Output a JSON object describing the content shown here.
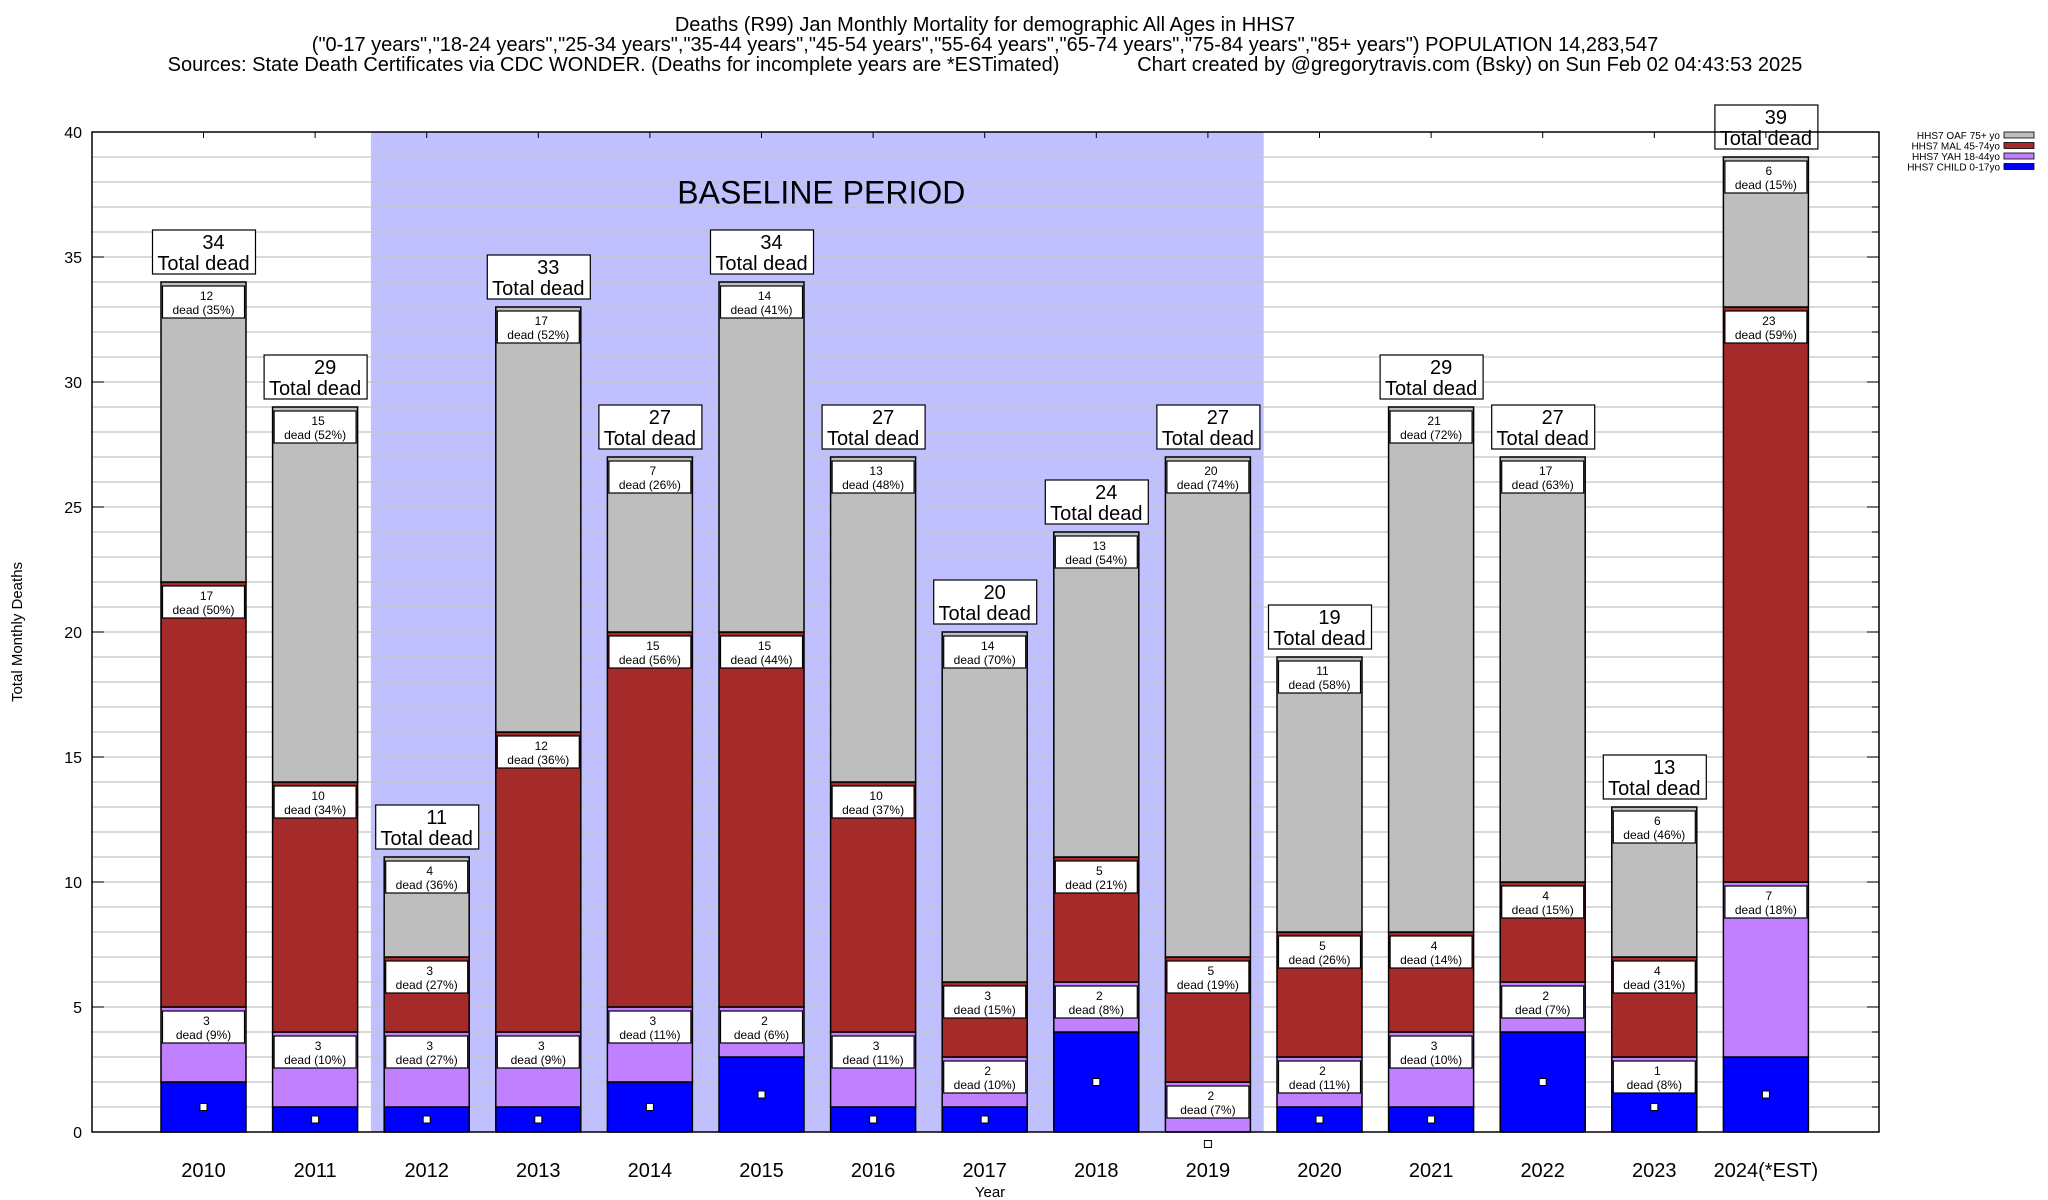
{
  "chart_data": {
    "type": "bar",
    "stacked": true,
    "title_lines": [
      "Deaths (R99) Jan Monthly Mortality for demographic All Ages in HHS7",
      "(\"0-17 years\",\"18-24 years\",\"25-34 years\",\"35-44 years\",\"45-54 years\",\"55-64 years\",\"65-74 years\",\"75-84 years\",\"85+ years\") POPULATION 14,283,547",
      "Sources: State Death Certificates via CDC WONDER. (Deaths for incomplete years are *ESTimated)              Chart created by @gregorytravis.com (Bsky) on Sun Feb 02 04:43:53 2025"
    ],
    "xlabel": "Year",
    "ylabel": "Total Monthly Deaths",
    "ylim": [
      0,
      40
    ],
    "yticks": [
      0,
      5,
      10,
      15,
      20,
      25,
      30,
      35,
      40
    ],
    "minor_grid_step": 1,
    "grid": true,
    "legend_position": "top-right (outside plot)",
    "baseline_period": {
      "label": "BASELINE PERIOD",
      "from": "2012",
      "to": "2019",
      "color": "#C0C0FF"
    },
    "total_label_suffix": "Total dead",
    "segment_label_word": "dead",
    "categories": [
      "2010",
      "2011",
      "2012",
      "2013",
      "2014",
      "2015",
      "2016",
      "2017",
      "2018",
      "2019",
      "2020",
      "2021",
      "2022",
      "2023",
      "2024(*EST)"
    ],
    "series": [
      {
        "name": "HHS7 CHILD 0-17yo",
        "color": "#0000FF",
        "labeled": false,
        "values": [
          2,
          1,
          1,
          1,
          2,
          3,
          1,
          1,
          4,
          0,
          1,
          1,
          4,
          2,
          3
        ]
      },
      {
        "name": "HHS7 YAH 18-44yo",
        "color": "#C080FF",
        "labeled": true,
        "values": [
          3,
          3,
          3,
          3,
          3,
          2,
          3,
          2,
          2,
          2,
          2,
          3,
          2,
          1,
          7
        ],
        "percents": [
          "9%",
          "10%",
          "27%",
          "9%",
          "11%",
          "6%",
          "11%",
          "10%",
          "8%",
          "7%",
          "11%",
          "10%",
          "7%",
          "8%",
          "18%"
        ]
      },
      {
        "name": "HHS7 MAL 45-74yo",
        "color": "#A52A2A",
        "labeled": true,
        "values": [
          17,
          10,
          3,
          12,
          15,
          15,
          10,
          3,
          5,
          5,
          5,
          4,
          4,
          4,
          23
        ],
        "percents": [
          "50%",
          "34%",
          "27%",
          "36%",
          "56%",
          "44%",
          "37%",
          "15%",
          "21%",
          "19%",
          "26%",
          "14%",
          "15%",
          "31%",
          "59%"
        ]
      },
      {
        "name": "HHS7 OAF 75+ yo",
        "color": "#BEBEBE",
        "labeled": true,
        "values": [
          12,
          15,
          4,
          17,
          7,
          14,
          13,
          14,
          13,
          20,
          11,
          21,
          17,
          6,
          6
        ],
        "percents": [
          "35%",
          "52%",
          "36%",
          "52%",
          "26%",
          "41%",
          "48%",
          "70%",
          "54%",
          "74%",
          "58%",
          "72%",
          "63%",
          "46%",
          "15%"
        ]
      }
    ],
    "totals": [
      34,
      29,
      11,
      33,
      27,
      34,
      27,
      20,
      24,
      27,
      19,
      29,
      27,
      13,
      39
    ],
    "legend_order": [
      "HHS7 OAF 75+ yo",
      "HHS7 MAL 45-74yo",
      "HHS7 YAH 18-44yo",
      "HHS7 CHILD 0-17yo"
    ]
  }
}
